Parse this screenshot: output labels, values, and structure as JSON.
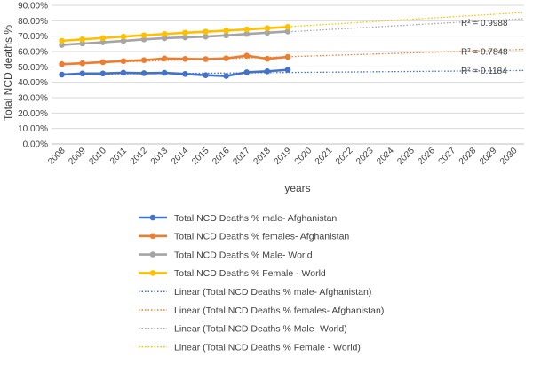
{
  "chart_data": {
    "type": "line",
    "ylabel": "Total NCD deaths %",
    "xlabel": "years",
    "ylim": [
      0,
      0.9
    ],
    "y_ticks": [
      "0.00%",
      "10.00%",
      "20.00%",
      "30.00%",
      "40.00%",
      "50.00%",
      "60.00%",
      "70.00%",
      "80.00%",
      "90.00%"
    ],
    "x_categories": [
      "2008",
      "2009",
      "2010",
      "2011",
      "2012",
      "2013",
      "2014",
      "2015",
      "2016",
      "2017",
      "2018",
      "2019",
      "2020",
      "2021",
      "2022",
      "2023",
      "2024",
      "2025",
      "2026",
      "2027",
      "2028",
      "2029",
      "2030"
    ],
    "grid": true,
    "legend_position": "bottom",
    "series": [
      {
        "name": "Total NCD Deaths  % male- Afghanistan",
        "color": "#4472c4",
        "x": [
          "2008",
          "2009",
          "2010",
          "2011",
          "2012",
          "2013",
          "2014",
          "2015",
          "2016",
          "2017",
          "2018",
          "2019"
        ],
        "values": [
          0.45,
          0.457,
          0.457,
          0.462,
          0.459,
          0.461,
          0.454,
          0.446,
          0.441,
          0.465,
          0.471,
          0.481
        ]
      },
      {
        "name": "Total NCD Deaths  % females- Afghanistan",
        "color": "#ed7d31",
        "x": [
          "2008",
          "2009",
          "2010",
          "2011",
          "2012",
          "2013",
          "2014",
          "2015",
          "2016",
          "2017",
          "2018",
          "2019"
        ],
        "values": [
          0.518,
          0.524,
          0.531,
          0.538,
          0.544,
          0.555,
          0.552,
          0.551,
          0.556,
          0.573,
          0.553,
          0.565
        ]
      },
      {
        "name": "Total NCD Deaths  % Male- World",
        "color": "#a5a5a5",
        "x": [
          "2008",
          "2009",
          "2010",
          "2011",
          "2012",
          "2013",
          "2014",
          "2015",
          "2016",
          "2017",
          "2018",
          "2019"
        ],
        "values": [
          0.643,
          0.652,
          0.66,
          0.669,
          0.679,
          0.687,
          0.692,
          0.697,
          0.705,
          0.714,
          0.722,
          0.73
        ]
      },
      {
        "name": "Total NCD Deaths  % Female - World",
        "color": "#ffc000",
        "x": [
          "2008",
          "2009",
          "2010",
          "2011",
          "2012",
          "2013",
          "2014",
          "2015",
          "2016",
          "2017",
          "2018",
          "2019"
        ],
        "values": [
          0.67,
          0.679,
          0.688,
          0.697,
          0.706,
          0.714,
          0.722,
          0.729,
          0.736,
          0.744,
          0.752,
          0.76
        ]
      }
    ],
    "trendlines": [
      {
        "name": "Linear (Total NCD Deaths  % male- Afghanistan)",
        "color": "#4472c4",
        "r2_label": "R² = 0.1184",
        "from": [
          "2008",
          0.451
        ],
        "to": [
          "2030",
          0.476
        ]
      },
      {
        "name": "Linear (Total NCD Deaths  % females- Afghanistan)",
        "color": "#ed7d31",
        "r2_label": "R² = 0.7848",
        "from": [
          "2008",
          0.521
        ],
        "to": [
          "2030",
          0.612
        ]
      },
      {
        "name": "Linear (Total NCD Deaths  % Male- World)",
        "color": "#a5a5a5",
        "r2_label": "R² = 0.9988",
        "from": [
          "2008",
          0.646
        ],
        "to": [
          "2030",
          0.81
        ]
      },
      {
        "name": "Linear (Total NCD Deaths  % Female - World)",
        "color": "#ffc000",
        "r2_label": "",
        "from": [
          "2008",
          0.672
        ],
        "to": [
          "2030",
          0.85
        ]
      }
    ]
  }
}
